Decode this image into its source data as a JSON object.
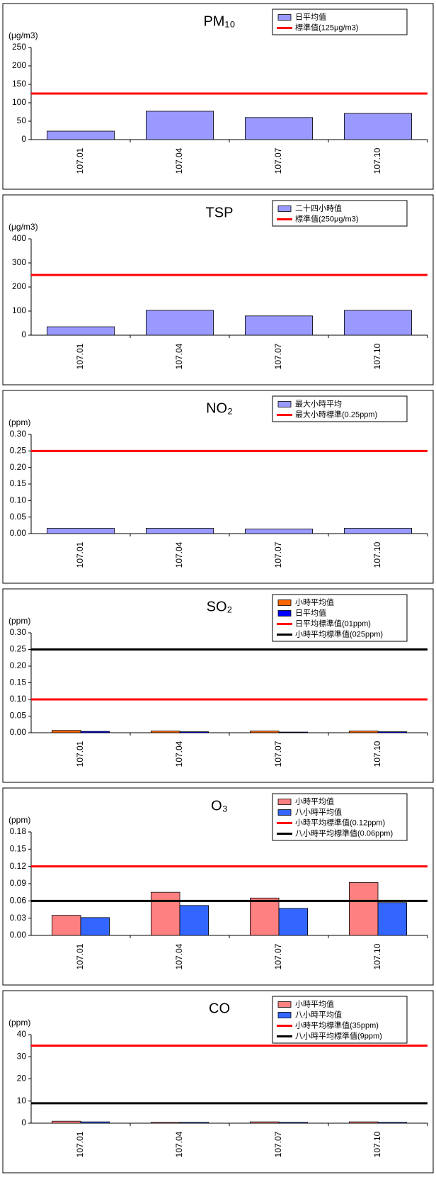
{
  "chart_data": [
    {
      "type": "bar",
      "title": "PM₁₀",
      "unit": "(μg/m3)",
      "categories": [
        "107.01",
        "107.04",
        "107.07",
        "107.10"
      ],
      "series": [
        {
          "name": "日平均值",
          "color": "#9999ff",
          "values": [
            23,
            77,
            60,
            71
          ]
        }
      ],
      "reference_lines": [
        {
          "name": "標準值(125μg/m3)",
          "color": "#ff0000",
          "value": 125
        }
      ],
      "ylim": [
        0,
        250
      ],
      "yticks": [
        0,
        50,
        100,
        150,
        200,
        250
      ]
    },
    {
      "type": "bar",
      "title": "TSP",
      "unit": "(μg/m3)",
      "categories": [
        "107.01",
        "107.04",
        "107.07",
        "107.10"
      ],
      "series": [
        {
          "name": "二十四小時值",
          "color": "#9999ff",
          "values": [
            35,
            103,
            80,
            103
          ]
        }
      ],
      "reference_lines": [
        {
          "name": "標準值(250μg/m3)",
          "color": "#ff0000",
          "value": 250
        }
      ],
      "ylim": [
        0,
        400
      ],
      "yticks": [
        0,
        100,
        200,
        300,
        400
      ]
    },
    {
      "type": "bar",
      "title": "NO₂",
      "unit": "(ppm)",
      "categories": [
        "107.01",
        "107.04",
        "107.07",
        "107.10"
      ],
      "series": [
        {
          "name": "最大小時平均",
          "color": "#9999ff",
          "values": [
            0.016,
            0.016,
            0.014,
            0.016
          ]
        }
      ],
      "reference_lines": [
        {
          "name": "最大小時標準(0.25ppm)",
          "color": "#ff0000",
          "value": 0.25
        }
      ],
      "ylim": [
        0,
        0.3
      ],
      "yticks": [
        {
          "value": 0,
          "label": "0.00"
        },
        {
          "value": 0.05,
          "label": "0.05"
        },
        {
          "value": 0.1,
          "label": "0.10"
        },
        {
          "value": 0.15,
          "label": "0.15"
        },
        {
          "value": 0.2,
          "label": "0.20"
        },
        {
          "value": 0.25,
          "label": "0.25"
        },
        {
          "value": 0.3,
          "label": "0.30"
        }
      ]
    },
    {
      "type": "bar",
      "title": "SO₂",
      "unit": "(ppm)",
      "categories": [
        "107.01",
        "107.04",
        "107.07",
        "107.10"
      ],
      "series": [
        {
          "name": "小時平均值",
          "color": "#ff6600",
          "values": [
            0.007,
            0.005,
            0.005,
            0.005
          ]
        },
        {
          "name": "日平均值",
          "color": "#0000ff",
          "values": [
            0.004,
            0.003,
            0.002,
            0.003
          ]
        }
      ],
      "reference_lines": [
        {
          "name": "日平均標準值(01ppm)",
          "color": "#ff0000",
          "value": 0.1
        },
        {
          "name": "小時平均標準值(025ppm)",
          "color": "#000000",
          "value": 0.25
        }
      ],
      "ylim": [
        0,
        0.3
      ],
      "yticks": [
        {
          "value": 0,
          "label": "0.00"
        },
        {
          "value": 0.05,
          "label": "0.05"
        },
        {
          "value": 0.1,
          "label": "0.10"
        },
        {
          "value": 0.15,
          "label": "0.15"
        },
        {
          "value": 0.2,
          "label": "0.20"
        },
        {
          "value": 0.25,
          "label": "0.25"
        },
        {
          "value": 0.3,
          "label": "0.30"
        }
      ]
    },
    {
      "type": "bar",
      "title": "O₃",
      "unit": "(ppm)",
      "categories": [
        "107.01",
        "107.04",
        "107.07",
        "107.10"
      ],
      "series": [
        {
          "name": "小時平均值",
          "color": "#ff8080",
          "values": [
            0.035,
            0.075,
            0.065,
            0.092
          ]
        },
        {
          "name": "八小時平均值",
          "color": "#3366ff",
          "values": [
            0.031,
            0.052,
            0.047,
            0.057
          ]
        }
      ],
      "reference_lines": [
        {
          "name": "小時平均標準值(0.12ppm)",
          "color": "#ff0000",
          "value": 0.12
        },
        {
          "name": "八小時平均標準值(0.06ppm)",
          "color": "#000000",
          "value": 0.06
        }
      ],
      "ylim": [
        0,
        0.18
      ],
      "yticks": [
        {
          "value": 0,
          "label": "0.00"
        },
        {
          "value": 0.03,
          "label": "0.03"
        },
        {
          "value": 0.06,
          "label": "0.06"
        },
        {
          "value": 0.09,
          "label": "0.09"
        },
        {
          "value": 0.12,
          "label": "0.12"
        },
        {
          "value": 0.15,
          "label": "0.15"
        },
        {
          "value": 0.18,
          "label": "0.18"
        }
      ]
    },
    {
      "type": "bar",
      "title": "CO",
      "unit": "(ppm)",
      "categories": [
        "107.01",
        "107.04",
        "107.07",
        "107.10"
      ],
      "series": [
        {
          "name": "小時平均值",
          "color": "#ff8080",
          "values": [
            0.9,
            0.4,
            0.6,
            0.6
          ]
        },
        {
          "name": "八小時平均值",
          "color": "#3366ff",
          "values": [
            0.6,
            0.4,
            0.4,
            0.4
          ]
        }
      ],
      "reference_lines": [
        {
          "name": "小時平均標準值(35ppm)",
          "color": "#ff0000",
          "value": 35
        },
        {
          "name": "八小時平均標準值(9ppm)",
          "color": "#000000",
          "value": 9
        }
      ],
      "ylim": [
        0,
        40
      ],
      "yticks": [
        0,
        10,
        20,
        30,
        40
      ]
    }
  ]
}
